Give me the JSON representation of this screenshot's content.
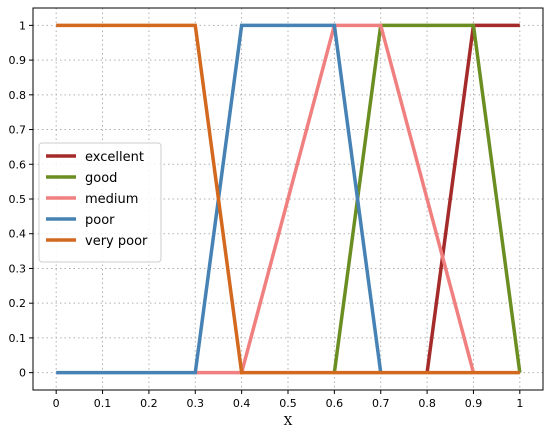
{
  "chart_data": {
    "type": "line",
    "title": "",
    "xlabel": "X",
    "ylabel": "",
    "xlim": [
      -0.05,
      1.05
    ],
    "ylim": [
      -0.05,
      1.05
    ],
    "grid": true,
    "grid_style": "dotted",
    "legend_position": "center-left",
    "x_ticks": [
      "0",
      "0.1",
      "0.2",
      "0.3",
      "0.4",
      "0.5",
      "0.6",
      "0.7",
      "0.8",
      "0.9",
      "1"
    ],
    "y_ticks": [
      "0",
      "0.1",
      "0.2",
      "0.3",
      "0.4",
      "0.5",
      "0.6",
      "0.7",
      "0.8",
      "0.9",
      "1"
    ],
    "series": [
      {
        "name": "excellent",
        "color": "#a52a2a",
        "x": [
          0.8,
          0.9,
          1.0
        ],
        "y": [
          0,
          1,
          1
        ]
      },
      {
        "name": "good",
        "color": "#6b8e23",
        "x": [
          0.6,
          0.7,
          0.9,
          1.0
        ],
        "y": [
          0,
          1,
          1,
          0
        ]
      },
      {
        "name": "medium",
        "color": "#f08080",
        "x": [
          0.3,
          0.4,
          0.6,
          0.7,
          0.9
        ],
        "y": [
          0,
          0,
          1,
          1,
          0
        ]
      },
      {
        "name": "poor",
        "color": "#4682b4",
        "x": [
          0.0,
          0.3,
          0.4,
          0.6,
          0.7
        ],
        "y": [
          0,
          0,
          1,
          1,
          0
        ]
      },
      {
        "name": "very poor",
        "color": "#d2691e",
        "x": [
          0.0,
          0.3,
          0.4,
          1.0
        ],
        "y": [
          1,
          1,
          0,
          0
        ]
      }
    ]
  }
}
